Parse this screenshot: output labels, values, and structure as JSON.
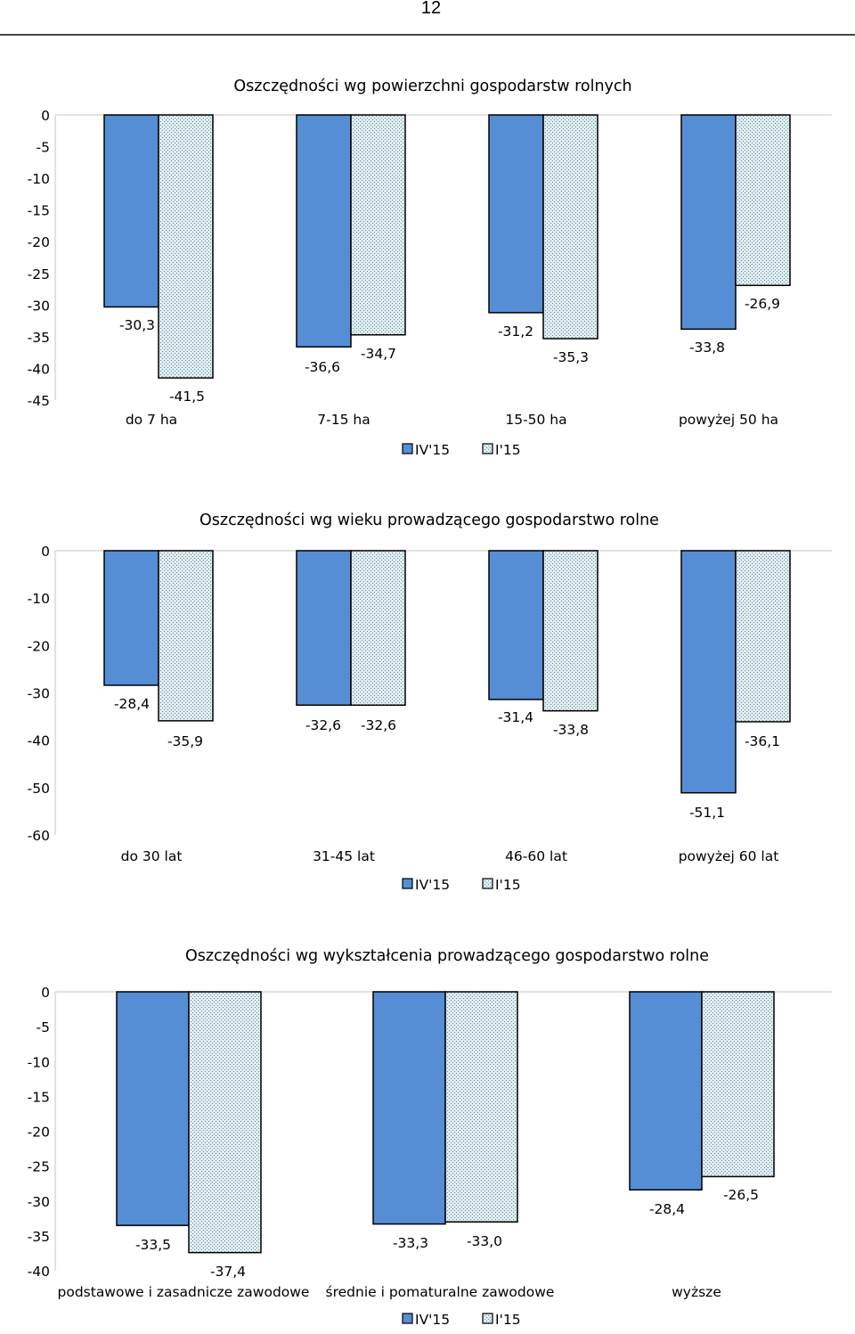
{
  "page": {
    "number": "12"
  },
  "colors": {
    "series1": "#558ed5",
    "series2_bg": "#dbeef4",
    "series2_dot": "#808080",
    "axis": "#d9d9d9",
    "outline": "#000000"
  },
  "chart_data": [
    {
      "type": "bar",
      "title": "Oszczędności wg powierzchni gospodarstw rolnych",
      "categories": [
        "do 7 ha",
        "7-15 ha",
        "15-50 ha",
        "powyżej 50 ha"
      ],
      "series": [
        {
          "name": "IV'15",
          "values": [
            -30.3,
            -36.6,
            -31.2,
            -33.8
          ],
          "labels": [
            "-30,3",
            "-36,6",
            "-31,2",
            "-33,8"
          ]
        },
        {
          "name": "I'15",
          "values": [
            -41.5,
            -34.7,
            -35.3,
            -26.9
          ],
          "labels": [
            "-41,5",
            "-34,7",
            "-35,3",
            "-26,9"
          ]
        }
      ],
      "ylim": [
        -45,
        0
      ],
      "yticks": [
        "0",
        "-5",
        "-10",
        "-15",
        "-20",
        "-25",
        "-30",
        "-35",
        "-40",
        "-45"
      ],
      "legend": [
        "IV'15",
        "I'15"
      ],
      "legend_position": "bottom",
      "xlabel": "",
      "ylabel": ""
    },
    {
      "type": "bar",
      "title": "Oszczędności wg wieku prowadzącego gospodarstwo rolne",
      "categories": [
        "do 30 lat",
        "31-45 lat",
        "46-60 lat",
        "powyżej 60 lat"
      ],
      "series": [
        {
          "name": "IV'15",
          "values": [
            -28.4,
            -32.6,
            -31.4,
            -51.1
          ],
          "labels": [
            "-28,4",
            "-32,6",
            "-31,4",
            "-51,1"
          ]
        },
        {
          "name": "I'15",
          "values": [
            -35.9,
            -32.6,
            -33.8,
            -36.1
          ],
          "labels": [
            "-35,9",
            "-32,6",
            "-33,8",
            "-36,1"
          ]
        }
      ],
      "ylim": [
        -60,
        0
      ],
      "yticks": [
        "0",
        "-10",
        "-20",
        "-30",
        "-40",
        "-50",
        "-60"
      ],
      "legend": [
        "IV'15",
        "I'15"
      ],
      "legend_position": "bottom",
      "xlabel": "",
      "ylabel": ""
    },
    {
      "type": "bar",
      "title": "Oszczędności wg wykształcenia prowadzącego gospodarstwo rolne",
      "categories": [
        "podstawowe i zasadnicze zawodowe",
        "średnie i pomaturalne zawodowe",
        "wyższe"
      ],
      "series": [
        {
          "name": "IV'15",
          "values": [
            -33.5,
            -33.3,
            -28.4
          ],
          "labels": [
            "-33,5",
            "-33,3",
            "-28,4"
          ]
        },
        {
          "name": "I'15",
          "values": [
            -37.4,
            -33.0,
            -26.5
          ],
          "labels": [
            "-37,4",
            "-33,0",
            "-26,5"
          ]
        }
      ],
      "ylim": [
        -40,
        0
      ],
      "yticks": [
        "0",
        "-5",
        "-10",
        "-15",
        "-20",
        "-25",
        "-30",
        "-35",
        "-40"
      ],
      "legend": [
        "IV'15",
        "I'15"
      ],
      "legend_position": "bottom",
      "xlabel": "",
      "ylabel": ""
    }
  ]
}
